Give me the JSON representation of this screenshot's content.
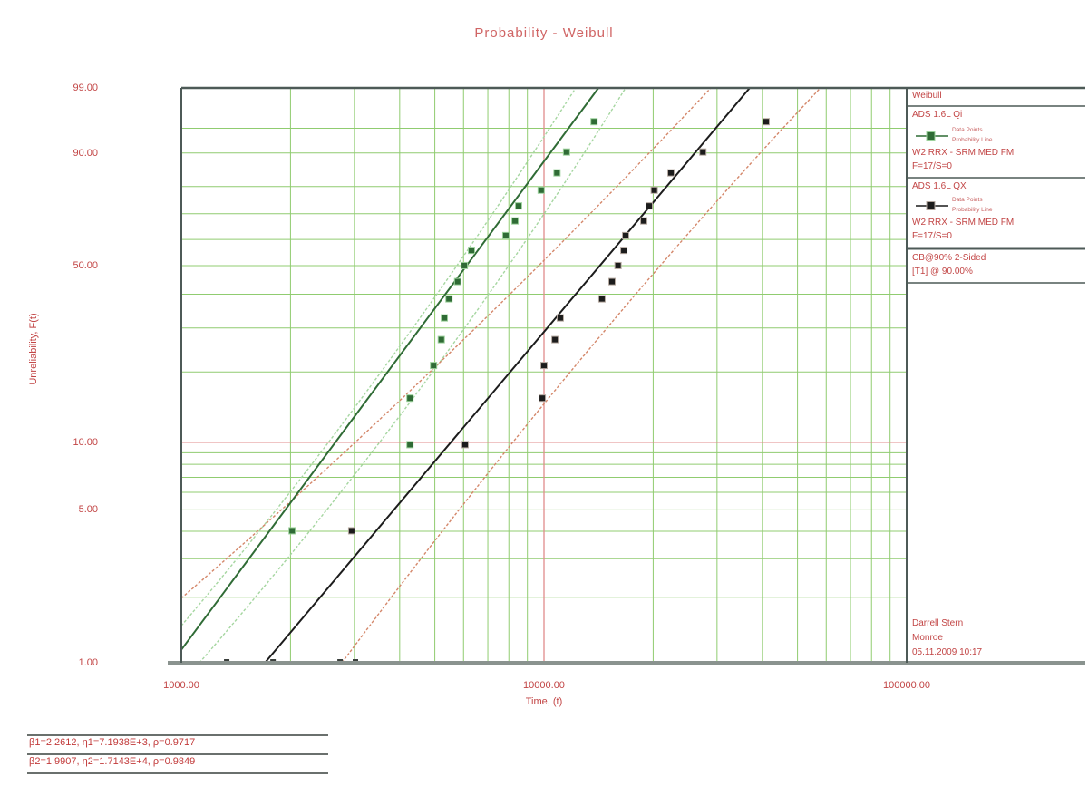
{
  "title": "Probability - Weibull",
  "colors": {
    "accent_red": "#c24545",
    "grid_minor_green": "#90cc70",
    "grid_major_red": "#e08b8b",
    "frame_dark": "#4d5a57",
    "axis_thick_gray": "#8a938f",
    "set1_green": "#2f6b35",
    "set1_cb_light_green": "#a5d6a0",
    "set2_black": "#1c1c1c",
    "set2_cb_salmon": "#d4876a"
  },
  "legend": {
    "distribution": "Weibull",
    "sets": [
      {
        "name": "ADS 1.6L Qi",
        "method": "W2 RRX - SRM MED FM",
        "counts": "F=17/S=0",
        "caption_points": "Data Points",
        "caption_line": "Probability Line"
      },
      {
        "name": "ADS 1.6L QX",
        "method": "W2 RRX - SRM MED FM",
        "counts": "F=17/S=0",
        "caption_points": "Data Points",
        "caption_line": "Probability Line"
      }
    ],
    "cb_line_1": "CB@90% 2-Sided",
    "cb_line_2": "[T1] @ 90.00%"
  },
  "analyst": {
    "name": "Darrell Stern",
    "company": "Monroe",
    "datetime": "05.11.2009 10:17"
  },
  "footer": {
    "line1": "β1=2.2612, η1=7.1938E+3, ρ=0.9717",
    "line2": "β2=1.9907, η2=1.7143E+4, ρ=0.9849"
  },
  "chart_data": {
    "type": "scatter",
    "title": "Probability - Weibull",
    "x_axis": {
      "label": "Time, (t)",
      "scale": "log",
      "min": 1000,
      "max": 100000,
      "tick_values": [
        1000,
        10000,
        100000
      ],
      "tick_labels": [
        "1000.00",
        "10000.00",
        "100000.00"
      ]
    },
    "y_axis": {
      "label": "Unreliability, F(t)",
      "scale": "weibull-probability",
      "min": 1,
      "max": 99,
      "tick_values": [
        99,
        90,
        50,
        10,
        5,
        1
      ],
      "tick_labels": [
        "99.00",
        "90.00",
        "50.00",
        "10.00",
        "5.00",
        "1.00"
      ],
      "minor_gridlines": [
        2,
        3,
        4,
        5,
        6,
        7,
        8,
        9,
        20,
        30,
        40,
        50,
        60,
        70,
        80,
        90,
        95
      ],
      "major_gridlines": [
        10
      ]
    },
    "grid": {
      "minor_on": true,
      "minor_color": "#90cc70",
      "major_color": "#e08b8b"
    },
    "legend_position": "right",
    "median_ranks_pct": [
      4.02,
      9.77,
      15.52,
      21.26,
      27.01,
      32.76,
      38.51,
      44.25,
      50.0,
      55.75,
      61.49,
      67.24,
      72.99,
      78.74,
      84.48,
      90.23,
      95.98
    ],
    "series": [
      {
        "name": "ADS 1.6L Qi",
        "marker": "square",
        "color": "#2f6b35",
        "halo": "#9cd19c",
        "times": [
          2020,
          4270,
          4270,
          4960,
          5210,
          5310,
          5470,
          5780,
          6030,
          6310,
          7850,
          8320,
          8510,
          9820,
          10860,
          11540,
          13740
        ],
        "unreliability_pct": [
          4.02,
          9.77,
          15.52,
          21.26,
          27.01,
          32.76,
          38.51,
          44.25,
          50.0,
          55.75,
          61.49,
          67.24,
          72.99,
          78.74,
          84.48,
          90.23,
          95.98
        ],
        "fit": {
          "distribution": "Weibull-2P",
          "beta": 2.2612,
          "eta": 7194,
          "rho": 0.9717
        },
        "cb_color": "#a5d6a0",
        "cb_lower": [
          [
            1000,
            1.48
          ],
          [
            3527,
            19.7
          ],
          [
            12230,
            99
          ]
        ],
        "cb_upper": [
          [
            1122,
            1.0
          ],
          [
            4732,
            18.4
          ],
          [
            16788,
            99
          ]
        ]
      },
      {
        "name": "ADS 1.6L QX",
        "marker": "square",
        "color": "#1c1c1c",
        "halo": "#b5a9a0",
        "times": [
          2950,
          6060,
          9890,
          10000,
          10720,
          11090,
          14450,
          15400,
          16000,
          16600,
          16790,
          18840,
          19500,
          20140,
          22390,
          27420,
          40970
        ],
        "unreliability_pct": [
          4.02,
          9.77,
          15.52,
          21.26,
          27.01,
          32.76,
          38.51,
          44.25,
          50.0,
          55.75,
          61.49,
          67.24,
          72.99,
          78.74,
          84.48,
          90.23,
          95.98
        ],
        "fit": {
          "distribution": "Weibull-2P",
          "beta": 1.9907,
          "eta": 17143,
          "rho": 0.9849
        },
        "cb_color": "#d4876a",
        "cb_lower": [
          [
            1000,
            1.98
          ],
          [
            5495,
            23.9
          ],
          [
            28840,
            99
          ]
        ],
        "cb_upper": [
          [
            2772,
            1.0
          ],
          [
            12590,
            22.4
          ],
          [
            57810,
            99
          ]
        ]
      }
    ],
    "axis_intersection_marks": {
      "times": [
        1334,
        1790,
        2740,
        3020
      ],
      "unreliability_pct": 1.0
    }
  }
}
